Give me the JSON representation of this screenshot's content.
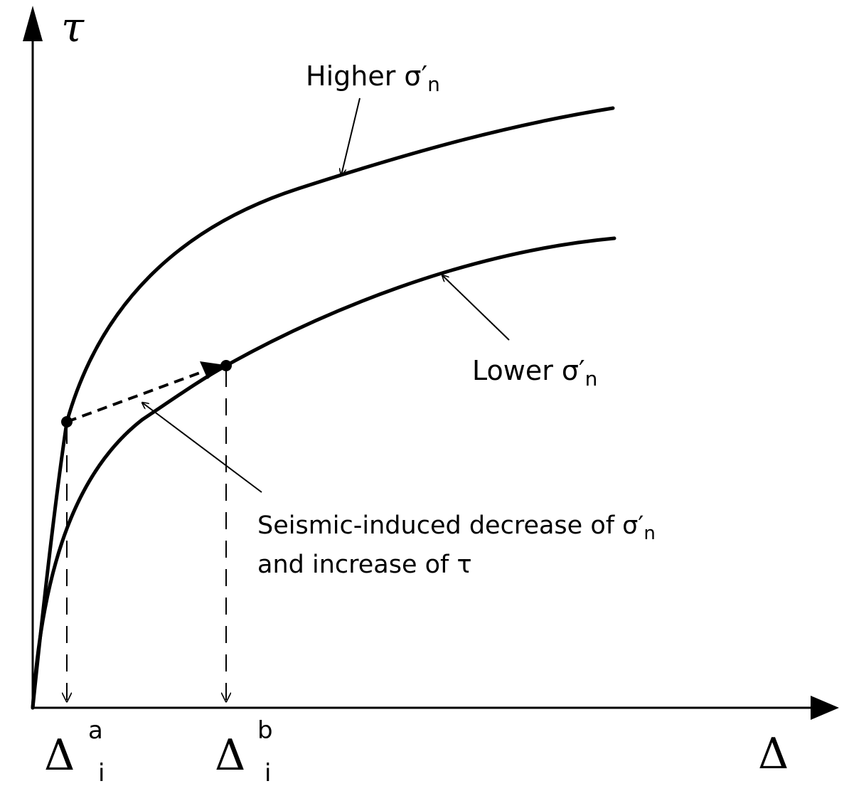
{
  "diagram": {
    "axis_y_label": "τ",
    "axis_x_label": "Δ",
    "tick_a": {
      "base": "Δ",
      "sup": "a",
      "sub": "i"
    },
    "tick_b": {
      "base": "Δ",
      "sup": "b",
      "sub": "i"
    },
    "curve_upper_label": {
      "text": "Higher σ′",
      "sub": "n"
    },
    "curve_lower_label": {
      "text": "Lower σ′",
      "sub": "n"
    },
    "annotation_line1": {
      "text": "Seismic-induced decrease of σ′",
      "sub": "n"
    },
    "annotation_line2": "and increase of τ",
    "colors": {
      "ink": "#000000",
      "background": "#ffffff"
    }
  }
}
